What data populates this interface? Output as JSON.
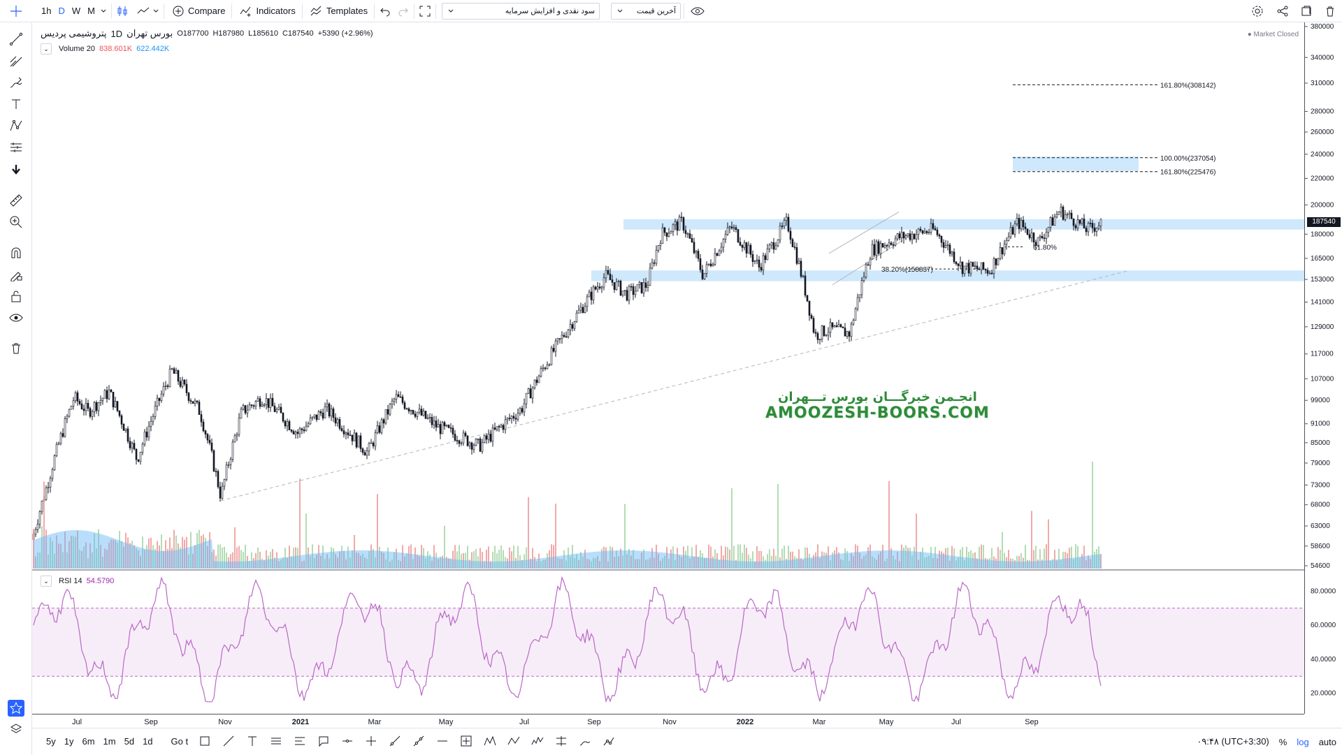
{
  "toolbar": {
    "intervals": [
      "1h",
      "D",
      "W",
      "M"
    ],
    "active_interval": "D",
    "compare_label": "Compare",
    "indicators_label": "Indicators",
    "templates_label": "Templates",
    "dropdown1": "سود نقدی و افزایش سرمایه",
    "dropdown2": "آخرین قیمت"
  },
  "legend": {
    "symbol": "پتروشیمی پردیس",
    "interval": "1D",
    "exchange": "بورس تهران",
    "open": "O187700",
    "high": "H187980",
    "low": "L185610",
    "close": "C187540",
    "change": "+5390 (+2.96%)",
    "volume_label": "Volume 20",
    "volume_val1": "838.601K",
    "volume_val2": "622.442K",
    "market_status": "Market Closed"
  },
  "rsi": {
    "label": "RSI 14",
    "value": "54.5790",
    "axis_ticks": [
      "80.0000",
      "60.0000",
      "40.0000",
      "20.0000"
    ]
  },
  "price_axis": {
    "ticks": [
      "380000",
      "340000",
      "310000",
      "280000",
      "260000",
      "240000",
      "220000",
      "200000",
      "180000",
      "165000",
      "153000",
      "141000",
      "129000",
      "117000",
      "107000",
      "99000",
      "91000",
      "85000",
      "79000",
      "73000",
      "68000",
      "63000",
      "58600",
      "54600"
    ],
    "last_price": "187540"
  },
  "fib_labels": {
    "f1": "161.80%(308142)",
    "f2": "100.00%(237054)",
    "f3": "161.80%(225476)",
    "f4": "61.80%",
    "f5": "38.20%(158837)"
  },
  "time_axis": [
    "Jul",
    "Sep",
    "Nov",
    "2021",
    "Mar",
    "May",
    "Jul",
    "Sep",
    "Nov",
    "2022",
    "Mar",
    "May",
    "Jul",
    "Sep"
  ],
  "watermark": {
    "line1": "انجـمن خبرگـــان بورس تـــهران",
    "line2": "AMOOZESH-BOORS.COM"
  },
  "bottom": {
    "ranges": [
      "5y",
      "1y",
      "6m",
      "1m",
      "5d",
      "1d"
    ],
    "goto": "Go t",
    "time": "۰۹:۴۸ (UTC+3:30)",
    "percent": "%",
    "log": "log",
    "auto": "auto"
  },
  "colors": {
    "accent": "#2962ff",
    "rsi_line": "#b968c7",
    "rsi_band": "#f3e5f5",
    "zone": "#bbdefb",
    "volume_up": "#a5d6a7",
    "volume_down": "#ef9a9a",
    "volume_ma": "#64b5f6"
  }
}
